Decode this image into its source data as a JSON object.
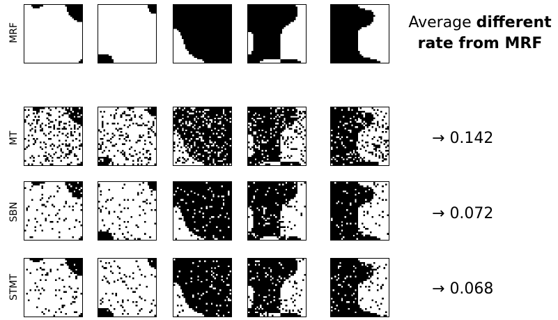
{
  "figure": {
    "rows": [
      {
        "label": "MRF"
      },
      {
        "label": "MT",
        "rate": "0.142"
      },
      {
        "label": "SBN",
        "rate": "0.072"
      },
      {
        "label": "STMT",
        "rate": "0.068"
      }
    ],
    "heading": {
      "line1_plain": "Average ",
      "line1_bold": "different",
      "line2_bold": "rate from MRF"
    },
    "arrow": "→",
    "colors": {
      "foreground": "#000000",
      "background": "#ffffff"
    }
  }
}
